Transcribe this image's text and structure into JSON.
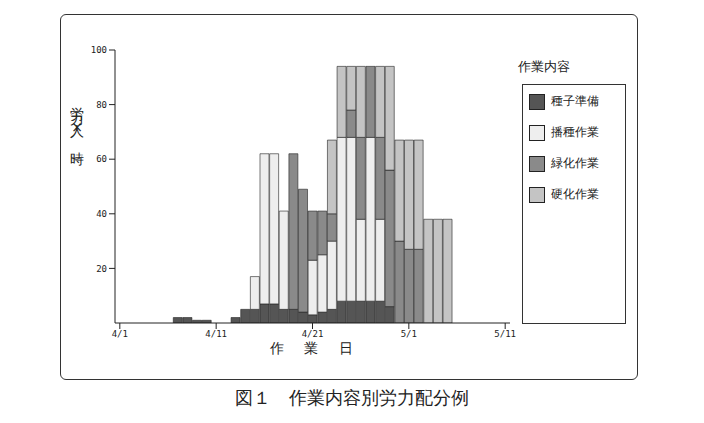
{
  "chart_data": {
    "type": "bar",
    "title": "図１　作業内容別労力配分例",
    "x_label": "作 業 日",
    "y_label": "労力（人×時）",
    "legend_title": "作業内容",
    "stacked": true,
    "legend": "right",
    "grid": false,
    "categories": [
      "4/1",
      null,
      null,
      null,
      null,
      null,
      null,
      null,
      null,
      null,
      "4/11",
      null,
      null,
      null,
      null,
      null,
      null,
      null,
      null,
      null,
      "4/21",
      null,
      null,
      null,
      null,
      null,
      null,
      null,
      null,
      null,
      "5/1",
      null,
      null,
      null,
      null,
      null,
      null,
      null,
      null,
      null,
      "5/11"
    ],
    "ylim": [
      0,
      100
    ],
    "yticks": [
      20,
      40,
      60,
      80,
      100
    ],
    "series": [
      {
        "name": "種子準備",
        "color": "#555555",
        "values": [
          0,
          0,
          0,
          0,
          0,
          0,
          2,
          2,
          1,
          1,
          0,
          0,
          2,
          5,
          5,
          7,
          7,
          5,
          5,
          4,
          3,
          4,
          5,
          8,
          8,
          8,
          8,
          8,
          6,
          0,
          0,
          0,
          0,
          0,
          0,
          0,
          0,
          0,
          0,
          0,
          0
        ]
      },
      {
        "name": "播種作業",
        "color": "#eeeeee",
        "values": [
          0,
          0,
          0,
          0,
          0,
          0,
          0,
          0,
          0,
          0,
          0,
          0,
          0,
          0,
          12,
          55,
          55,
          36,
          0,
          0,
          20,
          21,
          25,
          60,
          60,
          30,
          60,
          30,
          0,
          0,
          0,
          0,
          0,
          0,
          0,
          0,
          0,
          0,
          0,
          0,
          0
        ]
      },
      {
        "name": "緑化作業",
        "color": "#8a8a8a",
        "values": [
          0,
          0,
          0,
          0,
          0,
          0,
          0,
          0,
          0,
          0,
          0,
          0,
          0,
          0,
          0,
          0,
          0,
          0,
          57,
          45,
          18,
          16,
          10,
          0,
          10,
          30,
          26,
          30,
          50,
          30,
          27,
          27,
          0,
          0,
          0,
          0,
          0,
          0,
          0,
          0,
          0
        ]
      },
      {
        "name": "硬化作業",
        "color": "#c4c4c4",
        "values": [
          0,
          0,
          0,
          0,
          0,
          0,
          0,
          0,
          0,
          0,
          0,
          0,
          0,
          0,
          0,
          0,
          0,
          0,
          0,
          0,
          0,
          0,
          27,
          26,
          16,
          26,
          0,
          26,
          38,
          37,
          40,
          40,
          38,
          38,
          38,
          0,
          0,
          0,
          0,
          0,
          0
        ]
      }
    ]
  }
}
